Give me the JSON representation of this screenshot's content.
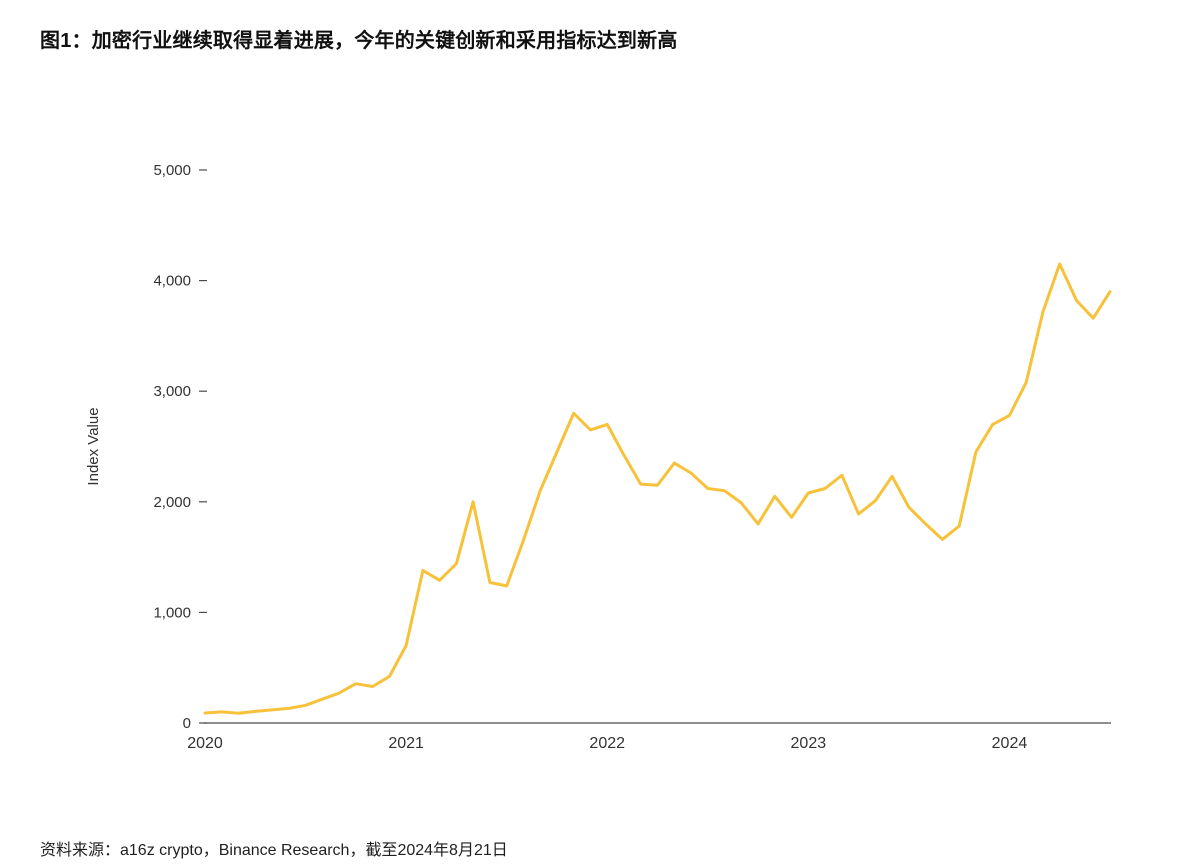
{
  "page": {
    "title": "图1：加密行业继续取得显着进展，今年的关键创新和采用指标达到新高",
    "source": "资料来源：a16z crypto，Binance Research，截至2024年8月21日"
  },
  "chart_data": {
    "type": "line",
    "title": "图1：加密行业继续取得显着进展，今年的关键创新和采用指标达到新高",
    "ylabel": "Index Value",
    "xlabel": "",
    "x_unit": "month",
    "x_start": "2020-01",
    "x_end": "2024-07",
    "x_tick_labels": [
      "2020",
      "2021",
      "2022",
      "2023",
      "2024"
    ],
    "x_tick_month_index": [
      0,
      12,
      24,
      36,
      48
    ],
    "ylim": [
      0,
      5000
    ],
    "y_ticks": [
      0,
      1000,
      2000,
      3000,
      4000,
      5000
    ],
    "y_tick_labels": [
      "0",
      "1,000",
      "2,000",
      "3,000",
      "4,000",
      "5,000"
    ],
    "grid": false,
    "legend": false,
    "line_color": "#F8C13A",
    "axis_color": "#4a4a4a",
    "text_color": "#333333",
    "series": [
      {
        "name": "Index Value",
        "values": [
          90,
          100,
          88,
          105,
          118,
          132,
          160,
          215,
          270,
          355,
          330,
          420,
          700,
          1380,
          1290,
          1440,
          2000,
          1270,
          1240,
          1650,
          2100,
          2450,
          2800,
          2650,
          2700,
          2420,
          2160,
          2150,
          2350,
          2260,
          2120,
          2100,
          1990,
          1800,
          2050,
          1860,
          2080,
          2120,
          2240,
          1890,
          2010,
          2230,
          1950,
          1800,
          1660,
          1780,
          2450,
          2700,
          2780,
          3080,
          3720,
          4150,
          3820,
          3660,
          3900
        ]
      }
    ]
  }
}
